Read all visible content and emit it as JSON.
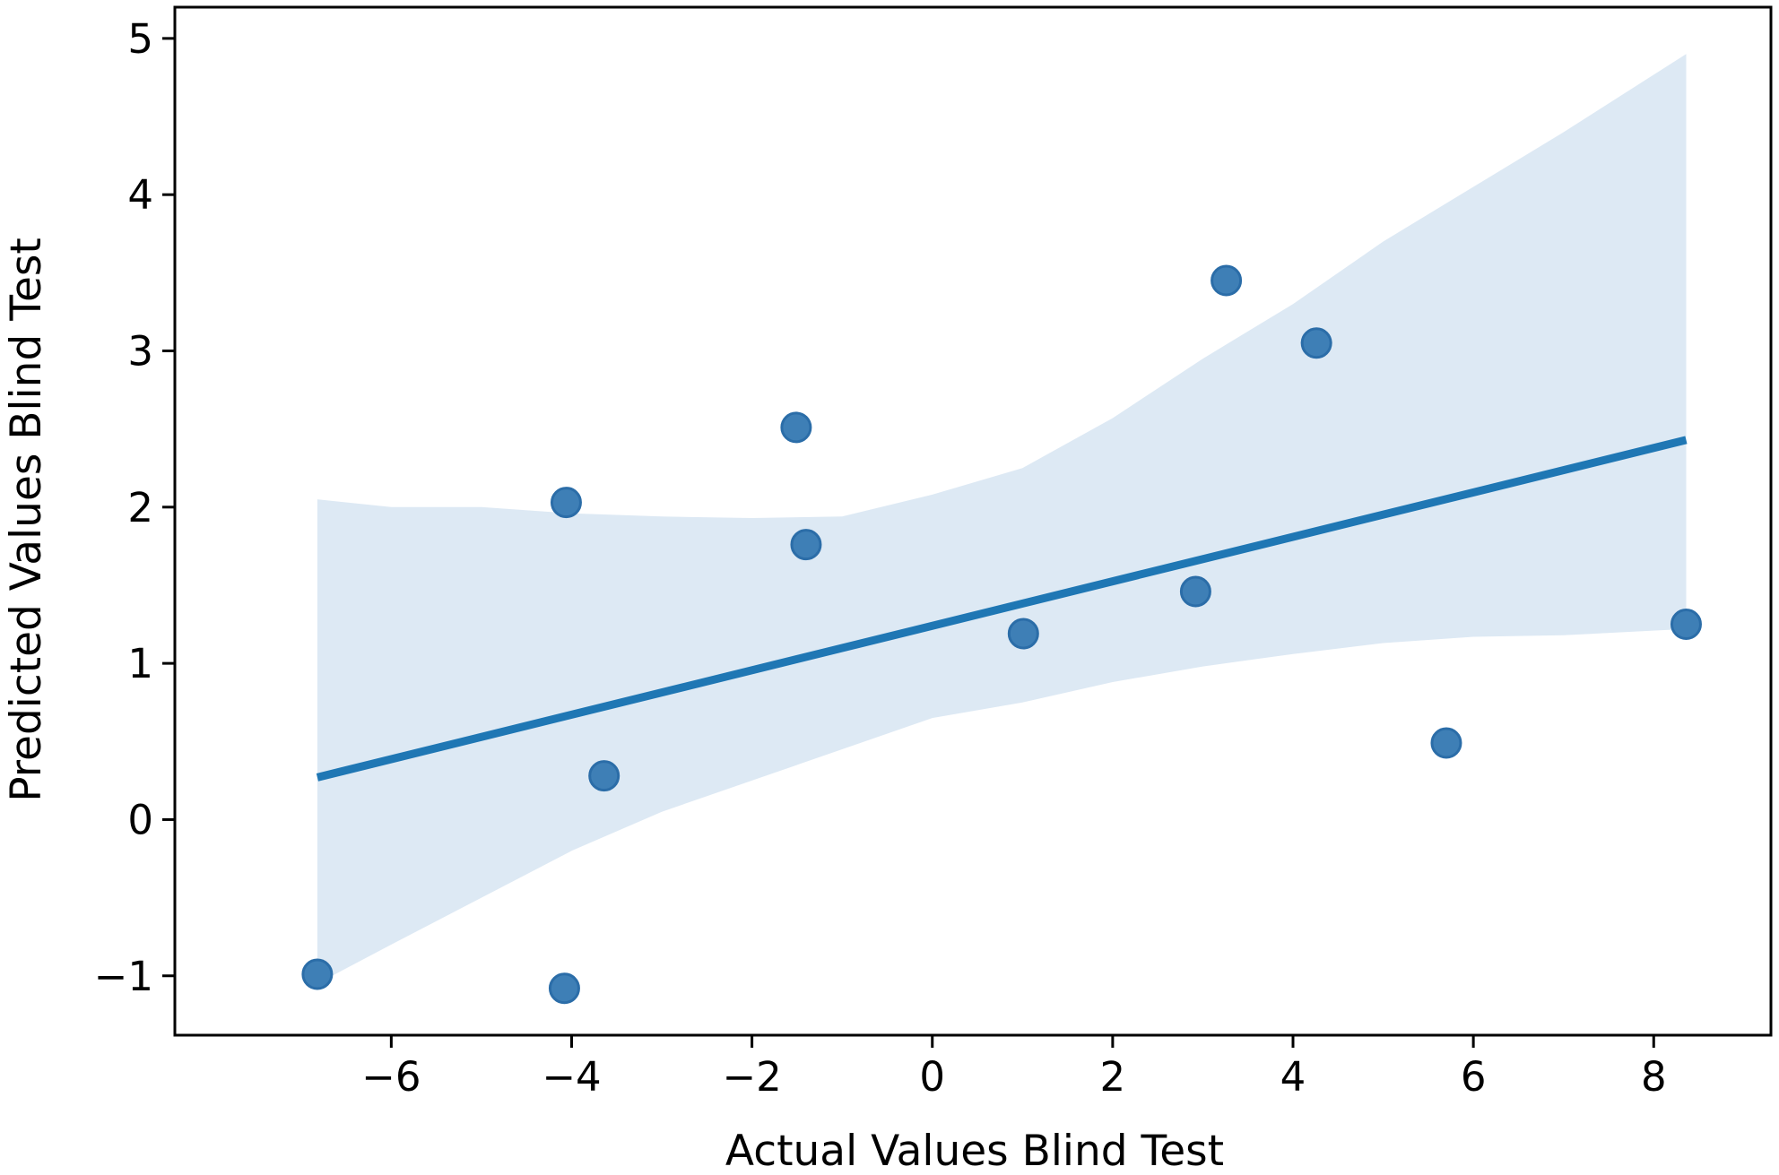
{
  "chart_data": {
    "type": "scatter",
    "title": "",
    "xlabel": "Actual Values Blind Test",
    "ylabel": "Predicted Values Blind Test",
    "xlim": [
      -8.4,
      9.3
    ],
    "ylim": [
      -1.38,
      5.2
    ],
    "xticks": [
      -6,
      -4,
      -2,
      0,
      2,
      4,
      6,
      8
    ],
    "yticks": [
      -1,
      0,
      1,
      2,
      3,
      4,
      5
    ],
    "xtick_labels": [
      "−6",
      "−4",
      "−2",
      "0",
      "2",
      "4",
      "6",
      "8"
    ],
    "ytick_labels": [
      "−1",
      "0",
      "1",
      "2",
      "3",
      "4",
      "5"
    ],
    "grid": false,
    "series": [
      {
        "values": [
          {
            "x": -6.82,
            "y": -0.99
          },
          {
            "x": -4.06,
            "y": 2.03
          },
          {
            "x": -4.08,
            "y": -1.08
          },
          {
            "x": -3.64,
            "y": 0.28
          },
          {
            "x": -1.51,
            "y": 2.51
          },
          {
            "x": -1.4,
            "y": 1.76
          },
          {
            "x": 1.01,
            "y": 1.19
          },
          {
            "x": 2.92,
            "y": 1.46
          },
          {
            "x": 3.26,
            "y": 3.45
          },
          {
            "x": 4.26,
            "y": 3.05
          },
          {
            "x": 5.7,
            "y": 0.49
          },
          {
            "x": 8.36,
            "y": 1.25
          }
        ]
      }
    ],
    "regression_line": {
      "x": [
        -6.82,
        8.36
      ],
      "y": [
        0.27,
        2.43
      ]
    },
    "confidence_band": {
      "x": [
        -6.82,
        -6.0,
        -5.0,
        -4.0,
        -3.0,
        -2.0,
        -1.0,
        0.0,
        1.0,
        2.0,
        3.0,
        4.0,
        5.0,
        6.0,
        7.0,
        8.36
      ],
      "upper": [
        2.05,
        2.0,
        2.0,
        1.96,
        1.94,
        1.93,
        1.94,
        2.08,
        2.25,
        2.57,
        2.95,
        3.3,
        3.7,
        4.05,
        4.4,
        4.9
      ],
      "lower": [
        -1.05,
        -0.8,
        -0.5,
        -0.2,
        0.05,
        0.25,
        0.45,
        0.65,
        0.75,
        0.88,
        0.98,
        1.06,
        1.13,
        1.17,
        1.18,
        1.22
      ]
    },
    "colors": {
      "point_fill": "#3e7fb6",
      "point_edge": "#2b6da8",
      "line": "#1f77b4",
      "band": "#dde9f4",
      "axes": "#000000"
    }
  }
}
